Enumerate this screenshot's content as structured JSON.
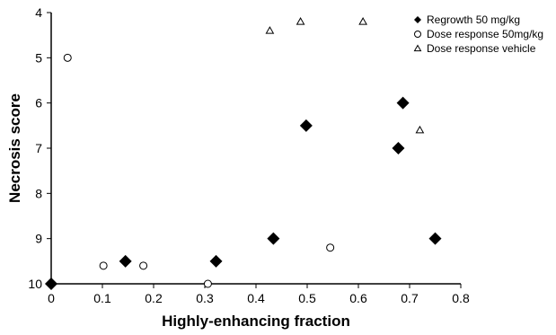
{
  "chart_data": {
    "type": "scatter",
    "xlabel": "Highly-enhancing fraction",
    "ylabel": "Necrosis score",
    "xlim": [
      0,
      0.8
    ],
    "ylim": [
      4,
      10
    ],
    "y_inverted": true,
    "xticks": [
      "0",
      "0.1",
      "0.2",
      "0.3",
      "0.4",
      "0.5",
      "0.6",
      "0.7",
      "0.8"
    ],
    "yticks": [
      "4",
      "5",
      "6",
      "7",
      "8",
      "9",
      "10"
    ],
    "grid": false,
    "legend_position": "top-right",
    "series": [
      {
        "name": "Regrowth 50 mg/kg",
        "marker": "diamond-filled",
        "color": "#000000",
        "points": [
          {
            "x": 0.0,
            "y": 10.0
          },
          {
            "x": 0.145,
            "y": 9.5
          },
          {
            "x": 0.322,
            "y": 9.5
          },
          {
            "x": 0.434,
            "y": 9.0
          },
          {
            "x": 0.498,
            "y": 6.5
          },
          {
            "x": 0.678,
            "y": 7.0
          },
          {
            "x": 0.687,
            "y": 6.0
          },
          {
            "x": 0.75,
            "y": 9.0
          }
        ]
      },
      {
        "name": "Dose response 50mg/kg",
        "marker": "circle-open",
        "color": "#000000",
        "points": [
          {
            "x": 0.032,
            "y": 5.0
          },
          {
            "x": 0.102,
            "y": 9.6
          },
          {
            "x": 0.18,
            "y": 9.6
          },
          {
            "x": 0.306,
            "y": 10.0
          },
          {
            "x": 0.545,
            "y": 9.2
          }
        ]
      },
      {
        "name": "Dose response vehicle",
        "marker": "triangle-open",
        "color": "#000000",
        "points": [
          {
            "x": 0.427,
            "y": 4.4
          },
          {
            "x": 0.487,
            "y": 4.2
          },
          {
            "x": 0.609,
            "y": 4.2
          },
          {
            "x": 0.72,
            "y": 6.6
          }
        ]
      }
    ]
  }
}
